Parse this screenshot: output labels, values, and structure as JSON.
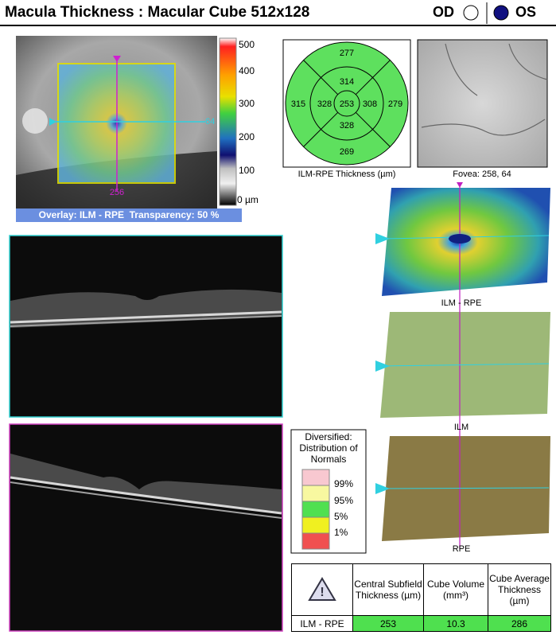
{
  "header": {
    "title": "Macula Thickness : Macular Cube 512x128",
    "od": "OD",
    "os": "OS"
  },
  "fundus": {
    "marker_x": "256",
    "marker_y": "64",
    "overlay_caption": "Overlay: ILM - RPE  Transparency: 50 %",
    "scale_labels": [
      "500",
      "400",
      "300",
      "200",
      "100",
      "0 µm"
    ]
  },
  "etdrs": {
    "center": "253",
    "inner_top": "314",
    "inner_left": "328",
    "inner_right": "308",
    "inner_bottom": "328",
    "outer_top": "277",
    "outer_left": "315",
    "outer_right": "279",
    "outer_bottom": "269",
    "caption": "ILM-RPE Thickness (µm)"
  },
  "fovea": {
    "caption": "Fovea: 258, 64"
  },
  "surfaces": [
    "ILM - RPE",
    "ILM",
    "RPE"
  ],
  "legend": {
    "title": "Diversified: Distribution of Normals",
    "entries": [
      "99%",
      "95%",
      "5%",
      "1%"
    ]
  },
  "table": {
    "headers": [
      "Central Subfield Thickness (µm)",
      "Cube Volume (mm³)",
      "Cube Average Thickness (µm)"
    ],
    "rows": [
      [
        "ILM - RPE",
        "253",
        "10.3",
        "286"
      ]
    ]
  }
}
